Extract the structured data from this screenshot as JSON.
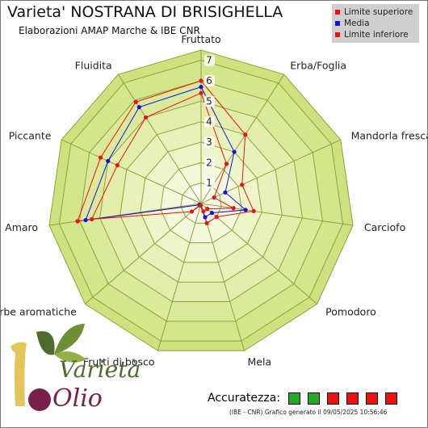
{
  "header": {
    "title": "Varieta' NOSTRANA DI BRISIGHELLA",
    "subtitle": "Elaborazioni AMAP Marche & IBE CNR"
  },
  "legend": {
    "items": [
      {
        "label": "Limite superiore",
        "color": "#ee1111"
      },
      {
        "label": "Media",
        "color": "#1111ee"
      },
      {
        "label": "Limite inferiore",
        "color": "#ee1111"
      }
    ]
  },
  "chart_data": {
    "type": "radar",
    "categories": [
      "Fruttato",
      "Erba/Foglia",
      "Mandorla fresca",
      "Carciofo",
      "Pomodoro",
      "Mela",
      "Frutti di bosco",
      "Erbe aromatiche",
      "Amaro",
      "Piccante",
      "Fluidita"
    ],
    "rlim": [
      0,
      7.5
    ],
    "ticks": [
      1,
      2,
      3,
      4,
      5,
      6,
      7
    ],
    "series": [
      {
        "name": "Limite superiore",
        "color": "#ee1111",
        "values": [
          6.0,
          4.0,
          2.2,
          2.6,
          1.0,
          1.0,
          0.1,
          0.1,
          6.1,
          5.4,
          5.9
        ]
      },
      {
        "name": "Media",
        "color": "#1111ee",
        "values": [
          5.7,
          3.0,
          1.3,
          2.2,
          0.7,
          0.7,
          0.1,
          0.1,
          5.7,
          5.0,
          5.6
        ]
      },
      {
        "name": "Limite inferiore",
        "color": "#ee1111",
        "values": [
          5.4,
          2.3,
          0.7,
          1.6,
          0.4,
          0.4,
          0.1,
          0.6,
          5.4,
          4.5,
          5.0
        ]
      }
    ]
  },
  "accuracy": {
    "label": "Accuratezza:",
    "boxes": [
      "#22aa22",
      "#22aa22",
      "#ee1111",
      "#ee1111",
      "#ee1111",
      "#ee1111"
    ]
  },
  "footer": {
    "note": "(IBE - CNR) Grafico generato il 09/05/2025 10:56:46"
  },
  "logo": {
    "text_top": "Varietà",
    "text_bottom": "Olio"
  }
}
